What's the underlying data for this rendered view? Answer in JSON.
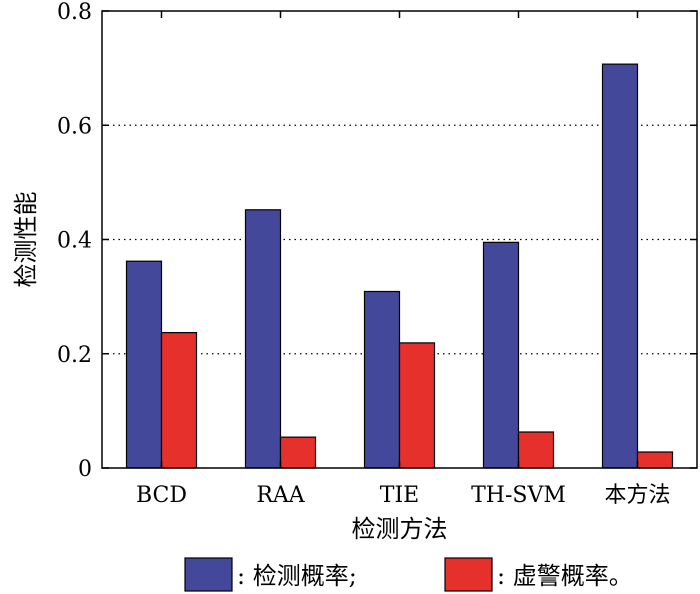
{
  "chart_data": {
    "type": "bar",
    "title": "",
    "xlabel": "检测方法",
    "ylabel": "检测性能",
    "categories": [
      "BCD",
      "RAA",
      "TIE",
      "TH-SVM",
      "本方法"
    ],
    "series": [
      {
        "name": "检测概率",
        "color": "#44489a",
        "values": [
          0.362,
          0.452,
          0.309,
          0.395,
          0.707
        ]
      },
      {
        "name": "虚警概率",
        "color": "#e5302b",
        "values": [
          0.237,
          0.054,
          0.219,
          0.063,
          0.028
        ]
      }
    ],
    "ylim": [
      0,
      0.8
    ],
    "yticks": [
      0,
      0.2,
      0.4,
      0.6,
      0.8
    ],
    "ytick_labels": [
      "0",
      "0.2",
      "0.4",
      "0.6",
      "0.8"
    ],
    "grid": true,
    "legend": {
      "placement": "bottom",
      "items": [
        {
          "prefix": ": ",
          "label": "检测概率",
          "suffix": ";"
        },
        {
          "prefix": ": ",
          "label": "虚警概率",
          "suffix": "。"
        }
      ]
    }
  }
}
